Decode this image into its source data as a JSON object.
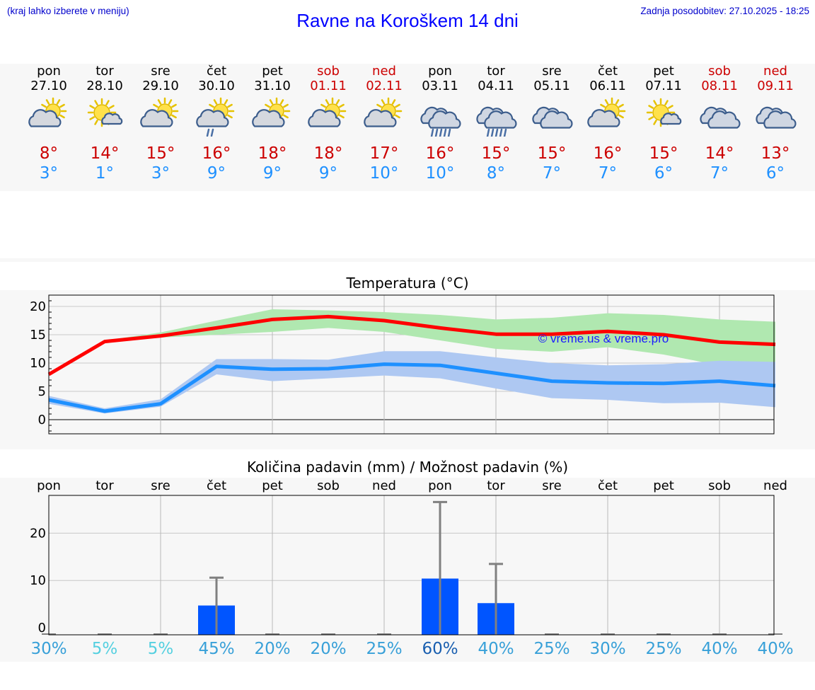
{
  "header": {
    "hint": "(kraj lahko izberete v meniju)",
    "title": "Ravne na Koroškem 14 dni",
    "updated": "Zadnja posodobitev: 27.10.2025 - 18:25"
  },
  "days": [
    {
      "name": "pon",
      "date": "27.10",
      "weekend": false,
      "icon": "partly-cloudy-icon",
      "hi": "8°",
      "lo": "3°"
    },
    {
      "name": "tor",
      "date": "28.10",
      "weekend": false,
      "icon": "mostly-sunny-icon",
      "hi": "14°",
      "lo": "1°"
    },
    {
      "name": "sre",
      "date": "29.10",
      "weekend": false,
      "icon": "partly-cloudy-icon",
      "hi": "15°",
      "lo": "3°"
    },
    {
      "name": "čet",
      "date": "30.10",
      "weekend": false,
      "icon": "partly-cloudy-shower-icon",
      "hi": "16°",
      "lo": "9°"
    },
    {
      "name": "pet",
      "date": "31.10",
      "weekend": false,
      "icon": "partly-cloudy-icon",
      "hi": "18°",
      "lo": "9°"
    },
    {
      "name": "sob",
      "date": "01.11",
      "weekend": true,
      "icon": "partly-cloudy-icon",
      "hi": "18°",
      "lo": "9°"
    },
    {
      "name": "ned",
      "date": "02.11",
      "weekend": true,
      "icon": "partly-cloudy-icon",
      "hi": "17°",
      "lo": "10°"
    },
    {
      "name": "pon",
      "date": "03.11",
      "weekend": false,
      "icon": "cloudy-rain-icon",
      "hi": "16°",
      "lo": "10°"
    },
    {
      "name": "tor",
      "date": "04.11",
      "weekend": false,
      "icon": "cloudy-rain-icon",
      "hi": "15°",
      "lo": "8°"
    },
    {
      "name": "sre",
      "date": "05.11",
      "weekend": false,
      "icon": "cloudy-icon",
      "hi": "15°",
      "lo": "7°"
    },
    {
      "name": "čet",
      "date": "06.11",
      "weekend": false,
      "icon": "partly-cloudy-icon",
      "hi": "16°",
      "lo": "7°"
    },
    {
      "name": "pet",
      "date": "07.11",
      "weekend": false,
      "icon": "mostly-sunny-icon",
      "hi": "15°",
      "lo": "6°"
    },
    {
      "name": "sob",
      "date": "08.11",
      "weekend": true,
      "icon": "cloudy-icon",
      "hi": "14°",
      "lo": "7°"
    },
    {
      "name": "ned",
      "date": "09.11",
      "weekend": true,
      "icon": "cloudy-icon",
      "hi": "13°",
      "lo": "6°"
    }
  ],
  "chart_data": [
    {
      "type": "line",
      "title": "Temperatura (°C)",
      "watermark": "© vreme.us & vreme.pro",
      "ylim": [
        -2.5,
        22
      ],
      "yticks": [
        0,
        5,
        10,
        15,
        20
      ],
      "x": [
        0,
        1,
        2,
        3,
        4,
        5,
        6,
        7,
        8,
        9,
        10,
        11,
        12,
        13
      ],
      "series": [
        {
          "name": "max",
          "color": "#ff0000",
          "values": [
            8,
            13.8,
            14.8,
            16.2,
            17.7,
            18.2,
            17.5,
            16.2,
            15.1,
            15.1,
            15.6,
            15,
            13.7,
            13.3
          ]
        },
        {
          "name": "min",
          "color": "#1e90ff",
          "values": [
            3.5,
            1.5,
            2.8,
            9.4,
            8.9,
            9,
            9.8,
            9.6,
            8.2,
            6.8,
            6.5,
            6.4,
            6.8,
            6
          ]
        }
      ],
      "bands": [
        {
          "name": "max-range",
          "color": "#b0e8b0",
          "low": [
            7.8,
            13.6,
            14.5,
            15,
            15.5,
            16.2,
            15.5,
            14,
            12.5,
            12,
            12.8,
            11.5,
            9.6,
            10
          ],
          "high": [
            8.3,
            14,
            15.4,
            17.5,
            19.5,
            19.3,
            19,
            18.5,
            17.7,
            18,
            18.8,
            18.5,
            17.7,
            17.3
          ]
        },
        {
          "name": "min-range",
          "color": "#aec8f2",
          "low": [
            2.8,
            1.1,
            2.3,
            8,
            6.8,
            7.3,
            7.8,
            7.3,
            5.5,
            3.8,
            3.5,
            2.9,
            3,
            2.2
          ],
          "high": [
            4.2,
            2,
            3.6,
            10.7,
            10.7,
            10.6,
            12.1,
            12.1,
            11,
            10,
            9.6,
            9.8,
            10.4,
            10.2
          ]
        }
      ]
    },
    {
      "type": "bar",
      "title": "Količina padavin (mm) / Možnost padavin (%)",
      "categories": [
        "pon",
        "tor",
        "sre",
        "čet",
        "pet",
        "sob",
        "ned",
        "pon",
        "tor",
        "sre",
        "čet",
        "pet",
        "sob",
        "ned"
      ],
      "ylim": [
        -1.5,
        28
      ],
      "yticks": [
        0,
        10,
        20
      ],
      "values": [
        0,
        0,
        0,
        4.7,
        0,
        0,
        0,
        10.4,
        5.2,
        0,
        0,
        0,
        0,
        0
      ],
      "error_max": [
        0,
        0,
        0,
        10.6,
        0,
        0,
        0,
        26.6,
        13.5,
        0,
        0,
        0,
        0,
        0
      ],
      "probability": [
        "30%",
        "5%",
        "5%",
        "45%",
        "20%",
        "20%",
        "25%",
        "60%",
        "40%",
        "25%",
        "30%",
        "25%",
        "40%",
        "40%"
      ],
      "probability_values": [
        30,
        5,
        5,
        45,
        20,
        20,
        25,
        60,
        40,
        25,
        30,
        25,
        40,
        40
      ],
      "bar_color": "#0055ff",
      "error_color": "#808080"
    }
  ]
}
